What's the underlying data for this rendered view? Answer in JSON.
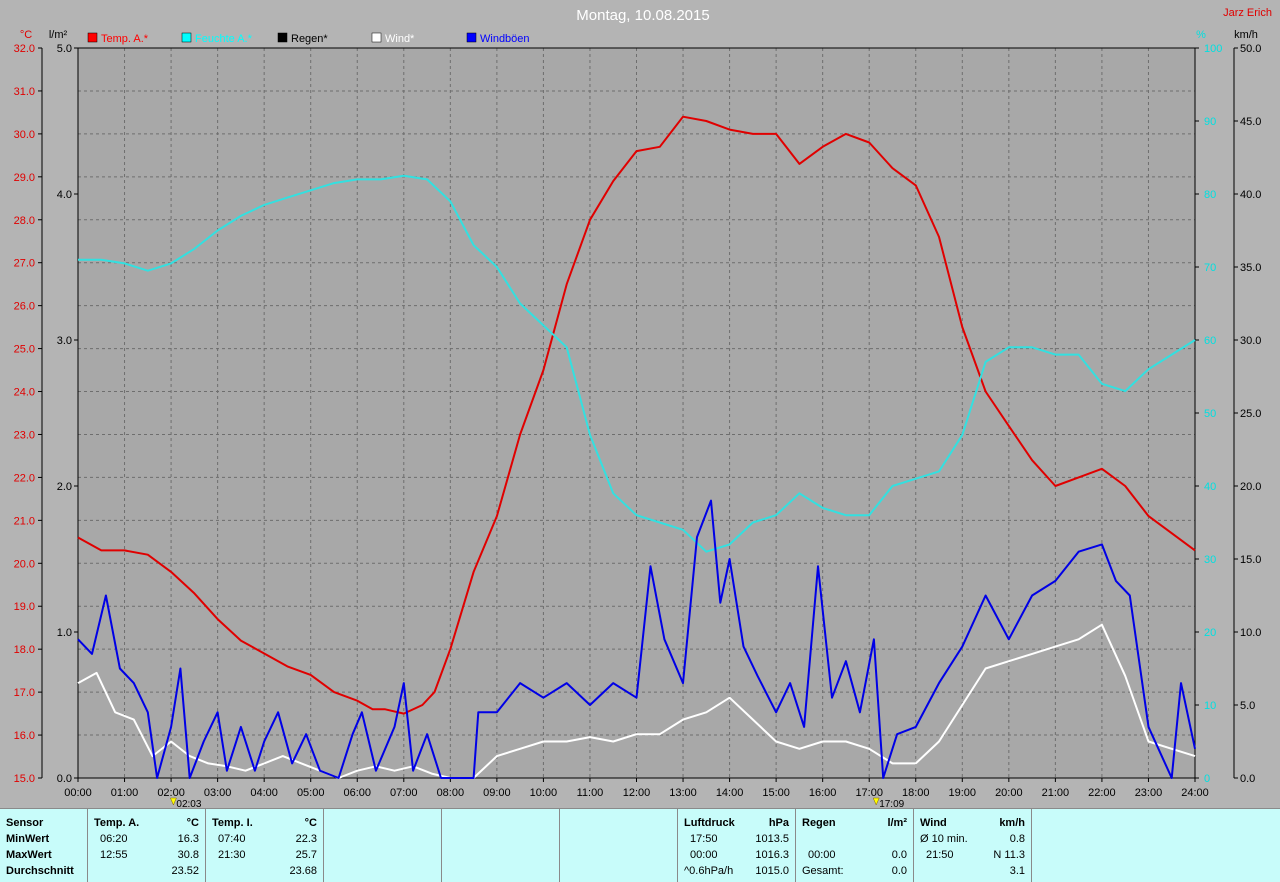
{
  "chart_data": {
    "type": "line",
    "title": "Montag, 10.08.2015",
    "author": "Jarz Erich",
    "x_ticks": [
      "00:00",
      "01:00",
      "02:00",
      "03:00",
      "04:00",
      "05:00",
      "06:00",
      "07:00",
      "08:00",
      "09:00",
      "10:00",
      "11:00",
      "12:00",
      "13:00",
      "14:00",
      "15:00",
      "16:00",
      "17:00",
      "18:00",
      "19:00",
      "20:00",
      "21:00",
      "22:00",
      "23:00",
      "24:00"
    ],
    "markers": [
      "02:03",
      "17:09"
    ],
    "axes": {
      "temp": {
        "unit": "°C",
        "min": 15.0,
        "max": 32.0,
        "ticks": [
          "15.0",
          "16.0",
          "17.0",
          "18.0",
          "19.0",
          "20.0",
          "21.0",
          "22.0",
          "23.0",
          "24.0",
          "25.0",
          "26.0",
          "27.0",
          "28.0",
          "29.0",
          "30.0",
          "31.0",
          "32.0"
        ]
      },
      "rain": {
        "unit": "l/m²",
        "min": 0.0,
        "max": 5.0,
        "ticks": [
          "0.0",
          "1.0",
          "2.0",
          "3.0",
          "4.0",
          "5.0"
        ]
      },
      "humidity": {
        "unit": "%",
        "min": 0,
        "max": 100,
        "ticks": [
          "0",
          "10",
          "20",
          "30",
          "40",
          "50",
          "60",
          "70",
          "80",
          "90",
          "100"
        ]
      },
      "wind": {
        "unit": "km/h",
        "min": 0.0,
        "max": 50.0,
        "ticks": [
          "0.0",
          "5.0",
          "10.0",
          "15.0",
          "20.0",
          "25.0",
          "30.0",
          "35.0",
          "40.0",
          "45.0",
          "50.0"
        ]
      }
    },
    "legend": [
      {
        "label": "Temp. A.*",
        "color": "#ff0000"
      },
      {
        "label": "Feuchte A.*",
        "color": "#00ffff"
      },
      {
        "label": "Regen*",
        "color": "#000000"
      },
      {
        "label": "Wind*",
        "color": "#ffffff"
      },
      {
        "label": "Windböen",
        "color": "#0000ff"
      }
    ],
    "series": [
      {
        "name": "Temp. A.*",
        "axis": "temp",
        "color": "#e00000",
        "points": [
          [
            0,
            20.6
          ],
          [
            0.5,
            20.3
          ],
          [
            1,
            20.3
          ],
          [
            1.5,
            20.2
          ],
          [
            2,
            19.8
          ],
          [
            2.5,
            19.3
          ],
          [
            3,
            18.7
          ],
          [
            3.5,
            18.2
          ],
          [
            4,
            17.9
          ],
          [
            4.5,
            17.6
          ],
          [
            5,
            17.4
          ],
          [
            5.5,
            17.0
          ],
          [
            6,
            16.8
          ],
          [
            6.33,
            16.6
          ],
          [
            6.6,
            16.6
          ],
          [
            7,
            16.5
          ],
          [
            7.4,
            16.7
          ],
          [
            7.66,
            17.0
          ],
          [
            8,
            18.0
          ],
          [
            8.5,
            19.8
          ],
          [
            9,
            21.1
          ],
          [
            9.5,
            23.0
          ],
          [
            10,
            24.5
          ],
          [
            10.5,
            26.5
          ],
          [
            11,
            28.0
          ],
          [
            11.5,
            28.9
          ],
          [
            12,
            29.6
          ],
          [
            12.5,
            29.7
          ],
          [
            13,
            30.4
          ],
          [
            13.5,
            30.3
          ],
          [
            14,
            30.1
          ],
          [
            14.5,
            30.0
          ],
          [
            15,
            30.0
          ],
          [
            15.5,
            29.3
          ],
          [
            16,
            29.7
          ],
          [
            16.5,
            30.0
          ],
          [
            17,
            29.8
          ],
          [
            17.5,
            29.2
          ],
          [
            18,
            28.8
          ],
          [
            18.5,
            27.6
          ],
          [
            19,
            25.5
          ],
          [
            19.5,
            24.0
          ],
          [
            20,
            23.2
          ],
          [
            20.5,
            22.4
          ],
          [
            21,
            21.8
          ],
          [
            21.5,
            22.0
          ],
          [
            22,
            22.2
          ],
          [
            22.5,
            21.8
          ],
          [
            23,
            21.1
          ],
          [
            23.5,
            20.7
          ],
          [
            24,
            20.3
          ]
        ]
      },
      {
        "name": "Feuchte A.*",
        "axis": "humidity",
        "color": "#33e0e0",
        "points": [
          [
            0,
            71
          ],
          [
            0.5,
            71
          ],
          [
            1,
            70.5
          ],
          [
            1.5,
            69.5
          ],
          [
            2,
            70.5
          ],
          [
            2.5,
            72.5
          ],
          [
            3,
            75
          ],
          [
            3.5,
            77
          ],
          [
            4,
            78.5
          ],
          [
            4.5,
            79.5
          ],
          [
            5,
            80.5
          ],
          [
            5.5,
            81.5
          ],
          [
            6,
            82
          ],
          [
            6.5,
            82
          ],
          [
            7,
            82.5
          ],
          [
            7.5,
            82
          ],
          [
            8,
            79
          ],
          [
            8.5,
            73
          ],
          [
            9,
            70
          ],
          [
            9.5,
            65
          ],
          [
            10,
            62
          ],
          [
            10.5,
            59
          ],
          [
            11,
            47
          ],
          [
            11.5,
            39
          ],
          [
            12,
            36
          ],
          [
            12.5,
            35
          ],
          [
            13,
            34
          ],
          [
            13.5,
            31
          ],
          [
            14,
            32
          ],
          [
            14.5,
            35
          ],
          [
            15,
            36
          ],
          [
            15.5,
            39
          ],
          [
            16,
            37
          ],
          [
            16.5,
            36
          ],
          [
            17,
            36
          ],
          [
            17.5,
            40
          ],
          [
            18,
            41
          ],
          [
            18.5,
            42
          ],
          [
            19,
            47
          ],
          [
            19.5,
            57
          ],
          [
            20,
            59
          ],
          [
            20.5,
            59
          ],
          [
            21,
            58
          ],
          [
            21.5,
            58
          ],
          [
            22,
            54
          ],
          [
            22.5,
            53
          ],
          [
            23,
            56
          ],
          [
            23.5,
            58
          ],
          [
            24,
            60
          ]
        ]
      },
      {
        "name": "Wind*",
        "axis": "wind",
        "color": "#ffffff",
        "points": [
          [
            0,
            6.5
          ],
          [
            0.4,
            7.2
          ],
          [
            0.8,
            4.5
          ],
          [
            1.2,
            4.0
          ],
          [
            1.6,
            1.5
          ],
          [
            2,
            2.5
          ],
          [
            2.4,
            1.5
          ],
          [
            2.8,
            1.0
          ],
          [
            3.2,
            0.8
          ],
          [
            3.6,
            0.5
          ],
          [
            4,
            1.0
          ],
          [
            4.4,
            1.5
          ],
          [
            4.8,
            1.0
          ],
          [
            5.2,
            0.5
          ],
          [
            5.6,
            0.0
          ],
          [
            6,
            0.5
          ],
          [
            6.4,
            0.8
          ],
          [
            6.8,
            0.5
          ],
          [
            7.2,
            0.8
          ],
          [
            7.6,
            0.3
          ],
          [
            8,
            0.0
          ],
          [
            8.5,
            0.0
          ],
          [
            9,
            1.5
          ],
          [
            9.5,
            2.0
          ],
          [
            10,
            2.5
          ],
          [
            10.5,
            2.5
          ],
          [
            11,
            2.8
          ],
          [
            11.5,
            2.5
          ],
          [
            12,
            3.0
          ],
          [
            12.5,
            3.0
          ],
          [
            13,
            4.0
          ],
          [
            13.5,
            4.5
          ],
          [
            14,
            5.5
          ],
          [
            14.5,
            4.0
          ],
          [
            15,
            2.5
          ],
          [
            15.5,
            2.0
          ],
          [
            16,
            2.5
          ],
          [
            16.5,
            2.5
          ],
          [
            17,
            2.0
          ],
          [
            17.5,
            1.0
          ],
          [
            18,
            1.0
          ],
          [
            18.5,
            2.5
          ],
          [
            19,
            5.0
          ],
          [
            19.5,
            7.5
          ],
          [
            20,
            8.0
          ],
          [
            20.5,
            8.5
          ],
          [
            21,
            9.0
          ],
          [
            21.5,
            9.5
          ],
          [
            22,
            10.5
          ],
          [
            22.5,
            7.0
          ],
          [
            23,
            2.5
          ],
          [
            23.5,
            2.0
          ],
          [
            24,
            1.5
          ]
        ]
      },
      {
        "name": "Windböen",
        "axis": "wind",
        "color": "#0000e6",
        "points": [
          [
            0,
            9.5
          ],
          [
            0.3,
            8.5
          ],
          [
            0.6,
            12.5
          ],
          [
            0.9,
            7.5
          ],
          [
            1.2,
            6.5
          ],
          [
            1.5,
            4.5
          ],
          [
            1.7,
            0.0
          ],
          [
            2,
            3.5
          ],
          [
            2.2,
            7.5
          ],
          [
            2.4,
            0.0
          ],
          [
            2.7,
            2.5
          ],
          [
            3,
            4.5
          ],
          [
            3.2,
            0.5
          ],
          [
            3.5,
            3.5
          ],
          [
            3.8,
            0.5
          ],
          [
            4,
            2.5
          ],
          [
            4.3,
            4.5
          ],
          [
            4.6,
            1.0
          ],
          [
            4.9,
            3.0
          ],
          [
            5.2,
            0.5
          ],
          [
            5.6,
            0.0
          ],
          [
            5.9,
            3.0
          ],
          [
            6.1,
            4.5
          ],
          [
            6.4,
            0.5
          ],
          [
            6.8,
            3.5
          ],
          [
            7,
            6.5
          ],
          [
            7.2,
            0.5
          ],
          [
            7.5,
            3.0
          ],
          [
            7.8,
            0.0
          ],
          [
            8.5,
            0.0
          ],
          [
            8.6,
            4.5
          ],
          [
            9,
            4.5
          ],
          [
            9.5,
            6.5
          ],
          [
            10,
            5.5
          ],
          [
            10.5,
            6.5
          ],
          [
            11,
            5.0
          ],
          [
            11.5,
            6.5
          ],
          [
            12,
            5.5
          ],
          [
            12.3,
            14.5
          ],
          [
            12.6,
            9.5
          ],
          [
            13,
            6.5
          ],
          [
            13.3,
            16.5
          ],
          [
            13.6,
            19.0
          ],
          [
            13.8,
            12.0
          ],
          [
            14,
            15.0
          ],
          [
            14.3,
            9.0
          ],
          [
            14.6,
            7.0
          ],
          [
            15,
            4.5
          ],
          [
            15.3,
            6.5
          ],
          [
            15.6,
            3.5
          ],
          [
            15.9,
            14.5
          ],
          [
            16.2,
            5.5
          ],
          [
            16.5,
            8.0
          ],
          [
            16.8,
            4.5
          ],
          [
            17.1,
            9.5
          ],
          [
            17.3,
            0.0
          ],
          [
            17.6,
            3.0
          ],
          [
            18,
            3.5
          ],
          [
            18.5,
            6.5
          ],
          [
            19,
            9.0
          ],
          [
            19.5,
            12.5
          ],
          [
            20,
            9.5
          ],
          [
            20.5,
            12.5
          ],
          [
            21,
            13.5
          ],
          [
            21.5,
            15.5
          ],
          [
            22,
            16.0
          ],
          [
            22.3,
            13.5
          ],
          [
            22.6,
            12.5
          ],
          [
            23,
            3.5
          ],
          [
            23.5,
            0.0
          ],
          [
            23.7,
            6.5
          ],
          [
            24,
            2.0
          ]
        ]
      }
    ]
  },
  "footer": {
    "sensor": {
      "header": "Sensor",
      "rows": [
        "MinWert",
        "MaxWert",
        "Durchschnitt"
      ]
    },
    "temp_a": {
      "header": "Temp. A.",
      "unit": "°C",
      "rows": [
        [
          "06:20",
          "16.3"
        ],
        [
          "12:55",
          "30.8"
        ],
        [
          "",
          "23.52"
        ]
      ]
    },
    "temp_i": {
      "header": "Temp. I.",
      "unit": "°C",
      "rows": [
        [
          "07:40",
          "22.3"
        ],
        [
          "21:30",
          "25.7"
        ],
        [
          "",
          "23.68"
        ]
      ]
    },
    "luftdruck": {
      "header": "Luftdruck",
      "unit": "hPa",
      "rows": [
        [
          "17:50",
          "1013.5"
        ],
        [
          "00:00",
          "1016.3"
        ],
        [
          "^0.6hPa/h",
          "1015.0"
        ]
      ]
    },
    "regen": {
      "header": "Regen",
      "unit": "l/m²",
      "rows": [
        [
          "",
          ""
        ],
        [
          "00:00",
          "0.0"
        ],
        [
          "Gesamt:",
          "0.0"
        ]
      ]
    },
    "wind": {
      "header": "Wind",
      "unit": "km/h",
      "rows": [
        [
          "Ø 10 min.",
          "0.8"
        ],
        [
          "21:50",
          "N 11.3"
        ],
        [
          "",
          "3.1"
        ]
      ]
    }
  }
}
